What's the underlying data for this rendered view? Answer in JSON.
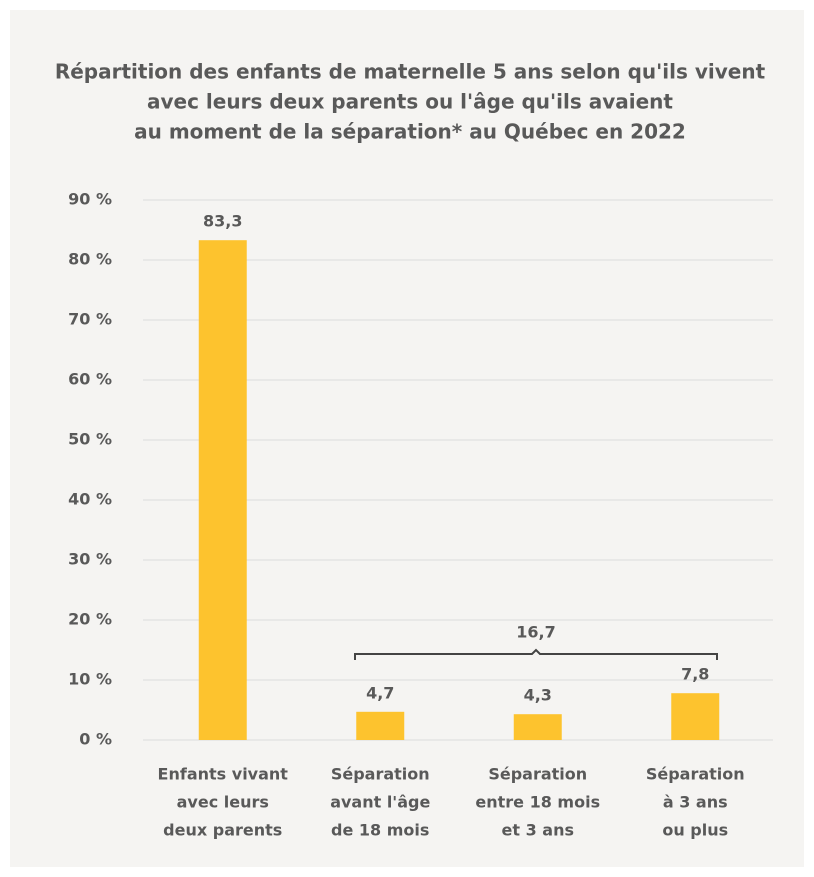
{
  "chart_data": {
    "type": "bar",
    "title": [
      "Répartition des enfants de maternelle 5 ans selon qu'ils vivent",
      "avec leurs deux parents ou l'âge qu'ils avaient",
      "au moment de la séparation* au Québec en 2022"
    ],
    "categories": [
      [
        "Enfants vivant",
        "avec leurs",
        "deux parents"
      ],
      [
        "Séparation",
        "avant l'âge",
        "de 18 mois"
      ],
      [
        "Séparation",
        "entre 18 mois",
        "et 3 ans"
      ],
      [
        "Séparation",
        "à 3 ans",
        "ou plus"
      ]
    ],
    "values": [
      83.3,
      4.7,
      4.3,
      7.8
    ],
    "value_labels": [
      "83,3",
      "4,7",
      "4,3",
      "7,8"
    ],
    "color": "#fdc32e",
    "annotation": "16,7",
    "ylim": [
      0,
      90
    ],
    "yticks": [
      {
        "value": 0,
        "label": "0 %"
      },
      {
        "value": 10,
        "label": "10 %"
      },
      {
        "value": 20,
        "label": "20 %"
      },
      {
        "value": 30,
        "label": "30 %"
      },
      {
        "value": 40,
        "label": "40 %"
      },
      {
        "value": 50,
        "label": "50 %"
      },
      {
        "value": 60,
        "label": "60 %"
      },
      {
        "value": 70,
        "label": "70 %"
      },
      {
        "value": 80,
        "label": "80 %"
      },
      {
        "value": 90,
        "label": "90 %"
      }
    ],
    "grid": true
  }
}
